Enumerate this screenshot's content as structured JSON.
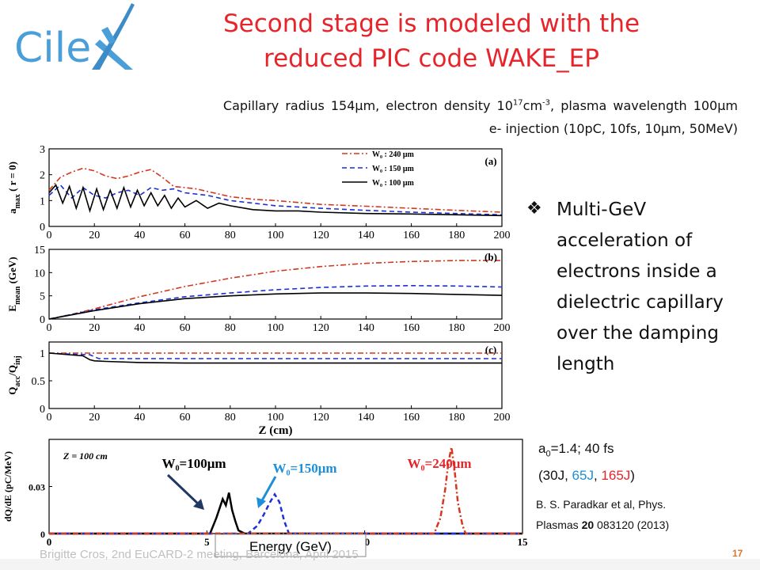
{
  "logo": {
    "text_a": "Cile",
    "text_b": "X"
  },
  "title": {
    "line1": "Second stage is modeled with the",
    "line2": "reduced PIC code WAKE_EP"
  },
  "subtitle": {
    "line1_a": "Capillary radius 154μm,  electron density 10",
    "line1_sup1": "17",
    "line1_b": "cm",
    "line1_sup2": "-3",
    "line1_c": ", plasma wavelength 100μm",
    "line2": "e- injection (10pC, 10fs, 10μm, 50MeV)"
  },
  "bullet": {
    "icon": "diamond-bullet-icon",
    "text": "Multi-GeV acceleration of electrons inside a dielectric capillary over the damping length"
  },
  "params": {
    "a0_prefix": "a",
    "a0_sub": "0",
    "a0_rest": "=1.4; 40 fs",
    "line2_open": "(30J, ",
    "e1": "65J",
    "comma": ", ",
    "e2": "165J",
    "line2_close": ")"
  },
  "reference": {
    "line1": "B. S. Paradkar et al, Phys.",
    "line2_a": "Plasmas ",
    "line2_b": "20",
    "line2_c": " 083120 (2013)"
  },
  "footer": {
    "text": "Brigitte Cros, 2nd EuCARD-2 meeting, Barcelona, April 2015",
    "page": "17"
  },
  "colors": {
    "red": "#d4381f",
    "blue": "#1c2fd8",
    "black": "#000000",
    "title": "#e8242b",
    "logo_blue": "#4a9fd8"
  },
  "chart_data": [
    {
      "type": "line",
      "panel": "(a)",
      "ylabel_main": "a",
      "ylabel_sub": "max",
      "ylabel_rest": " ( r = 0)",
      "xlim": [
        0,
        200
      ],
      "ylim": [
        0,
        3
      ],
      "xticks": [
        "0",
        "20",
        "40",
        "60",
        "80",
        "100",
        "120",
        "140",
        "160",
        "180",
        "200"
      ],
      "yticks": [
        "0",
        "1",
        "2",
        "3"
      ],
      "legend": [
        "W₀ : 240 μm",
        "W₀ : 150 μm",
        "W₀ : 100 μm"
      ],
      "series": [
        {
          "name": "W₀ : 240 μm",
          "color": "red",
          "dash": "dashdot",
          "x": [
            0,
            5,
            10,
            15,
            20,
            25,
            30,
            35,
            40,
            45,
            50,
            55,
            60,
            65,
            70,
            80,
            90,
            100,
            120,
            140,
            160,
            180,
            200
          ],
          "y": [
            1.4,
            1.9,
            2.1,
            2.25,
            2.15,
            1.95,
            1.85,
            1.95,
            2.1,
            2.2,
            1.9,
            1.55,
            1.5,
            1.45,
            1.35,
            1.15,
            1.05,
            1.0,
            0.85,
            0.78,
            0.7,
            0.62,
            0.55
          ]
        },
        {
          "name": "W₀ : 150 μm",
          "color": "blue",
          "dash": "dashed",
          "x": [
            0,
            5,
            10,
            15,
            20,
            25,
            30,
            35,
            40,
            45,
            50,
            55,
            60,
            70,
            80,
            90,
            100,
            120,
            140,
            160,
            180,
            200
          ],
          "y": [
            1.2,
            1.6,
            1.1,
            1.5,
            1.2,
            1.1,
            1.3,
            1.4,
            1.2,
            1.5,
            1.4,
            1.45,
            1.3,
            1.2,
            1.0,
            0.9,
            0.8,
            0.7,
            0.62,
            0.55,
            0.5,
            0.45
          ]
        },
        {
          "name": "W₀ : 100 μm",
          "color": "black",
          "dash": "solid",
          "x": [
            0,
            3,
            6,
            9,
            12,
            15,
            18,
            21,
            24,
            27,
            30,
            33,
            36,
            39,
            42,
            45,
            48,
            51,
            54,
            57,
            60,
            65,
            70,
            75,
            80,
            90,
            100,
            110,
            120,
            140,
            160,
            180,
            200
          ],
          "y": [
            1.3,
            1.6,
            0.9,
            1.55,
            0.7,
            1.5,
            0.6,
            1.45,
            0.65,
            1.4,
            0.7,
            1.5,
            0.75,
            1.4,
            0.8,
            1.3,
            0.8,
            1.2,
            0.7,
            1.1,
            0.75,
            1.0,
            0.7,
            0.9,
            0.8,
            0.65,
            0.6,
            0.6,
            0.55,
            0.5,
            0.48,
            0.45,
            0.42
          ]
        }
      ]
    },
    {
      "type": "line",
      "panel": "(b)",
      "ylabel_main": "E",
      "ylabel_sub": "mean",
      "ylabel_rest": " (GeV)",
      "xlim": [
        0,
        200
      ],
      "ylim": [
        0,
        15
      ],
      "xticks": [
        "0",
        "20",
        "40",
        "60",
        "80",
        "100",
        "120",
        "140",
        "160",
        "180",
        "200"
      ],
      "yticks": [
        "0",
        "5",
        "10",
        "15"
      ],
      "series": [
        {
          "name": "W₀ : 240 μm",
          "color": "red",
          "dash": "dashdot",
          "x": [
            0,
            10,
            20,
            40,
            60,
            80,
            100,
            120,
            140,
            160,
            180,
            200
          ],
          "y": [
            0,
            1,
            2.2,
            4.8,
            7,
            8.8,
            10.3,
            11.3,
            12,
            12.4,
            12.6,
            12.6
          ]
        },
        {
          "name": "W₀ : 150 μm",
          "color": "blue",
          "dash": "dashed",
          "x": [
            0,
            10,
            20,
            40,
            60,
            80,
            100,
            120,
            140,
            160,
            180,
            200
          ],
          "y": [
            0,
            1,
            2,
            3.5,
            4.8,
            5.6,
            6.3,
            6.8,
            7.1,
            7.2,
            7.1,
            6.9
          ]
        },
        {
          "name": "W₀ : 100 μm",
          "color": "black",
          "dash": "solid",
          "x": [
            0,
            10,
            20,
            40,
            60,
            80,
            100,
            120,
            140,
            160,
            180,
            200
          ],
          "y": [
            0,
            0.9,
            1.8,
            3.3,
            4.4,
            5.0,
            5.4,
            5.6,
            5.6,
            5.5,
            5.3,
            5.1
          ]
        }
      ]
    },
    {
      "type": "line",
      "panel": "(c)",
      "ylabel_main": "Q",
      "ylabel_sub": "acc",
      "ylabel_rest": "/Q",
      "ylabel_sub2": "inj",
      "xlim": [
        0,
        200
      ],
      "ylim": [
        0,
        1.2
      ],
      "xticks": [
        "0",
        "20",
        "40",
        "60",
        "80",
        "100",
        "120",
        "140",
        "160",
        "180",
        "200"
      ],
      "yticks": [
        "0",
        "0.5",
        "1"
      ],
      "xlabel": "Z (cm)",
      "series": [
        {
          "name": "W₀ : 240 μm",
          "color": "red",
          "dash": "dashdot",
          "x": [
            0,
            200
          ],
          "y": [
            1.0,
            1.0
          ]
        },
        {
          "name": "W₀ : 150 μm",
          "color": "blue",
          "dash": "dashed",
          "x": [
            0,
            10,
            18,
            22,
            40,
            200
          ],
          "y": [
            1.0,
            0.98,
            0.97,
            0.9,
            0.9,
            0.9
          ]
        },
        {
          "name": "W₀ : 100 μm",
          "color": "black",
          "dash": "solid",
          "x": [
            0,
            15,
            18,
            20,
            25,
            40,
            60,
            200
          ],
          "y": [
            1.0,
            0.95,
            0.88,
            0.86,
            0.85,
            0.83,
            0.82,
            0.82
          ]
        }
      ]
    },
    {
      "type": "line",
      "panel": "spectrum",
      "annotation": "Z = 100 cm",
      "ylabel": "dQ/dE (pC/MeV)",
      "xlabel": "Energy (GeV)",
      "xlim": [
        0,
        15
      ],
      "ylim": [
        0,
        0.06
      ],
      "xticks": [
        "0",
        "5",
        "10",
        "15"
      ],
      "yticks": [
        "0",
        "0.03"
      ],
      "labels": {
        "w100": "W₀=100μm",
        "w150": "W₀=150μm",
        "w240": "W₀=240μm"
      },
      "series": [
        {
          "name": "W₀=100μm",
          "color": "black",
          "dash": "solid",
          "x": [
            0,
            5.1,
            5.3,
            5.5,
            5.6,
            5.7,
            5.8,
            5.9,
            6.0,
            6.2,
            15
          ],
          "y": [
            0,
            0,
            0.01,
            0.022,
            0.018,
            0.026,
            0.015,
            0.008,
            0.002,
            0,
            0
          ]
        },
        {
          "name": "W₀=150μm",
          "color": "blue",
          "dash": "dashed",
          "x": [
            0,
            6.3,
            6.6,
            6.8,
            7.0,
            7.15,
            7.3,
            7.45,
            7.6,
            15
          ],
          "y": [
            0,
            0,
            0.005,
            0.012,
            0.02,
            0.025,
            0.02,
            0.008,
            0,
            0
          ]
        },
        {
          "name": "W₀=240μm",
          "color": "red",
          "dash": "dashdot",
          "x": [
            0,
            12.2,
            12.4,
            12.55,
            12.65,
            12.75,
            12.85,
            12.95,
            13.1,
            13.2,
            15
          ],
          "y": [
            0,
            0,
            0.01,
            0.028,
            0.045,
            0.055,
            0.04,
            0.02,
            0.005,
            0,
            0
          ]
        }
      ]
    }
  ]
}
